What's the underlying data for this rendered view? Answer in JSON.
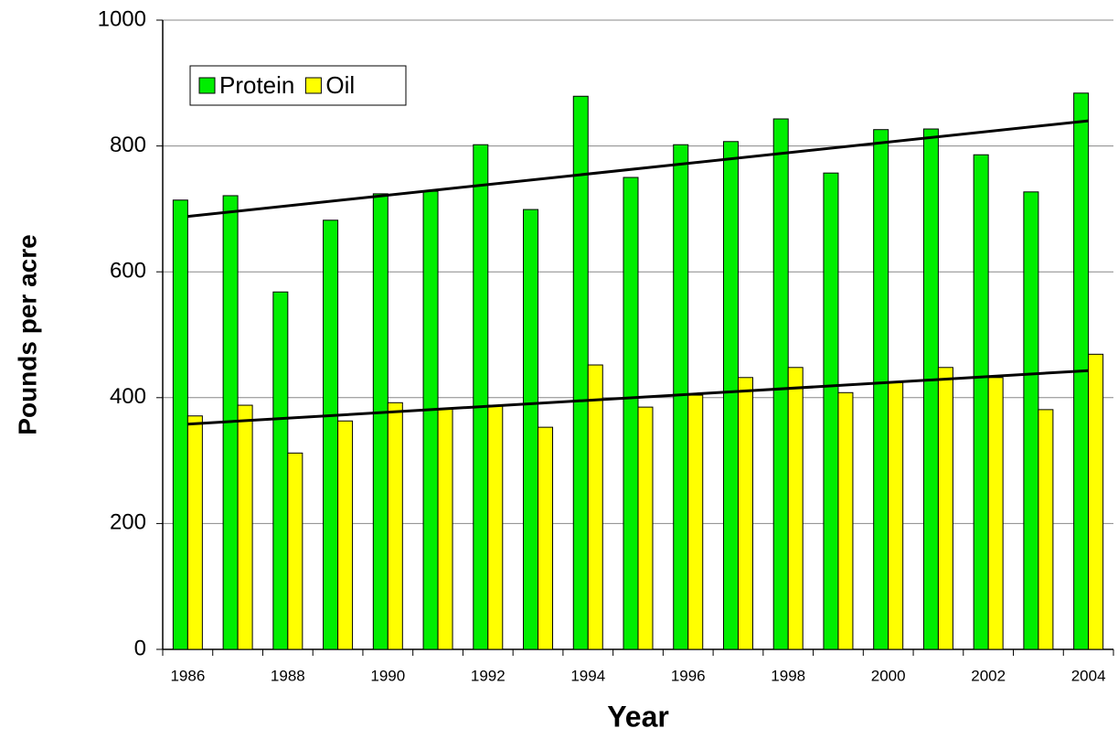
{
  "chart_data": {
    "type": "bar",
    "x_label": "Year",
    "y_label": "Pounds per acre",
    "categories": [
      "1986",
      null,
      "1988",
      null,
      "1990",
      null,
      "1992",
      null,
      "1994",
      null,
      "1996",
      null,
      "1998",
      null,
      "2000",
      null,
      "2002",
      null,
      "2004"
    ],
    "series": [
      {
        "name": "Protein",
        "color": "#00ee00",
        "values": [
          714,
          721,
          568,
          682,
          724,
          728,
          802,
          699,
          879,
          750,
          802,
          807,
          843,
          757,
          826,
          827,
          786,
          727,
          884
        ],
        "trend": [
          688,
          840
        ]
      },
      {
        "name": "Oil",
        "color": "#ffff00",
        "values": [
          371,
          388,
          312,
          363,
          392,
          382,
          388,
          353,
          452,
          385,
          404,
          432,
          448,
          408,
          424,
          448,
          432,
          381,
          469
        ],
        "trend": [
          358,
          443
        ]
      }
    ],
    "ylim": [
      0,
      1000
    ],
    "yticks": [
      0,
      200,
      400,
      600,
      800,
      1000
    ],
    "grid": true,
    "legend": "upper left"
  }
}
